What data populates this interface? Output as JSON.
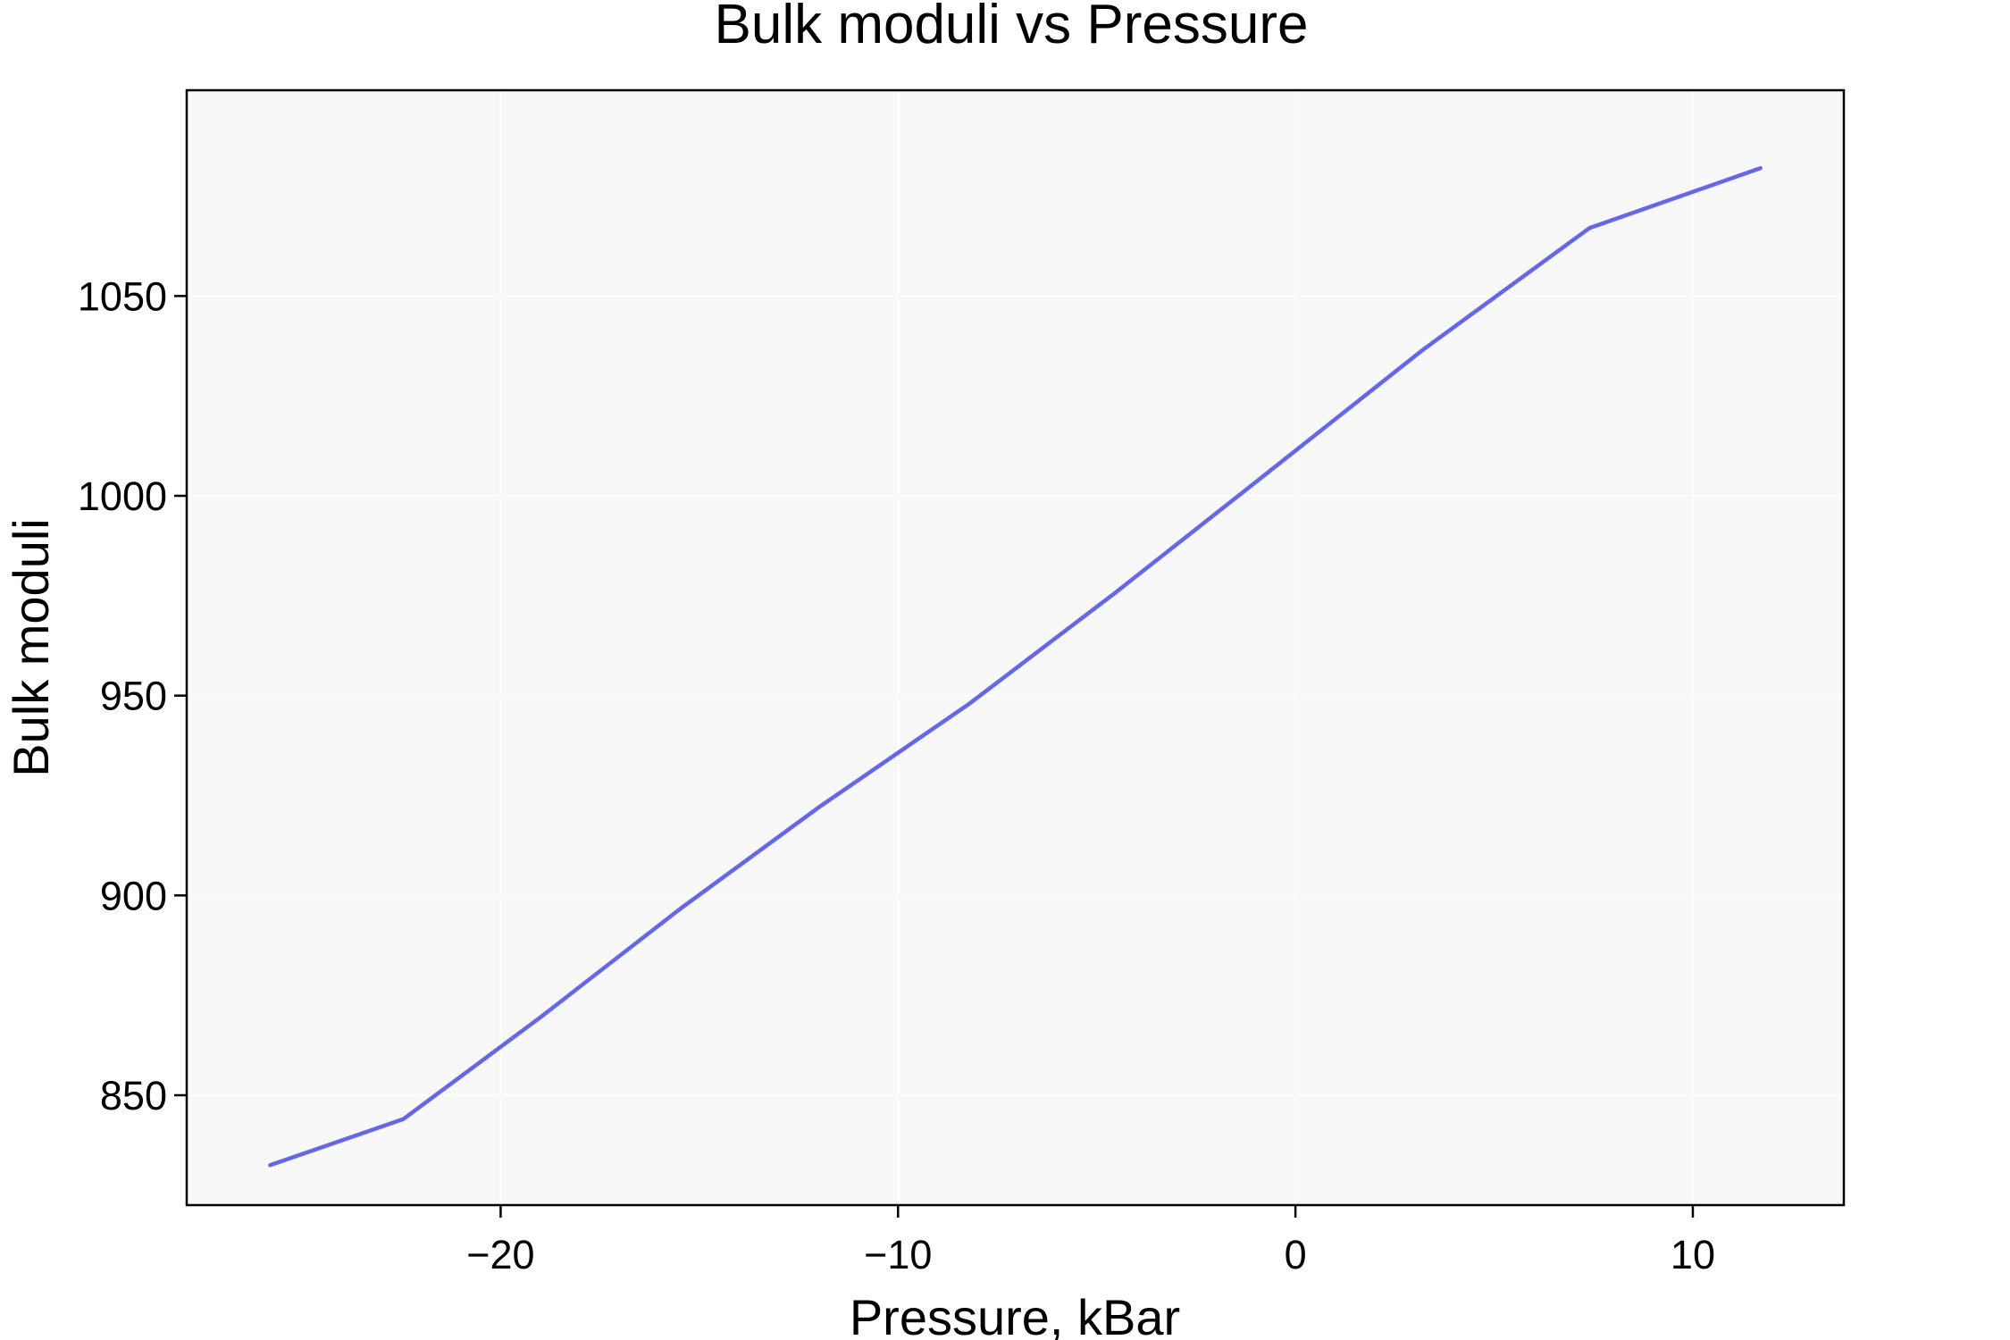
{
  "chart_data": {
    "type": "line",
    "title": "Bulk moduli vs Pressure",
    "xlabel": "Pressure, kBar",
    "ylabel": "Bulk moduli",
    "xlim": [
      -27.9,
      13.8
    ],
    "ylim": [
      822.5,
      1101.5
    ],
    "x_ticks": [
      -20,
      -10,
      0,
      10
    ],
    "x_tick_labels": [
      "−20",
      "−10",
      "0",
      "10"
    ],
    "y_ticks": [
      850,
      900,
      950,
      1000,
      1050
    ],
    "y_tick_labels": [
      "850",
      "900",
      "950",
      "1000",
      "1050"
    ],
    "grid": true,
    "legend": "none",
    "series": [
      {
        "color": "#6366f1",
        "x": [
          -25.8,
          -22.45,
          -19.0,
          -15.5,
          -12.0,
          -8.2,
          -4.5,
          -0.8,
          3.2,
          7.4,
          11.7
        ],
        "y": [
          832.5,
          844.0,
          869.5,
          896.5,
          922.0,
          948.0,
          976.0,
          1005.0,
          1036.5,
          1067.0,
          1082.0
        ]
      }
    ],
    "colors": {
      "plot_background": "#f8f8f8",
      "grid": "#ffffff",
      "frame": "#000000"
    }
  }
}
